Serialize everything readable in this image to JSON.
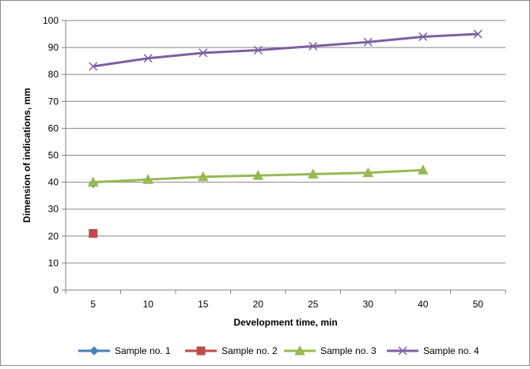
{
  "chart_data": {
    "type": "line",
    "categories": [
      "5",
      "10",
      "15",
      "20",
      "25",
      "30",
      "40",
      "50"
    ],
    "xlabel": "Development time, min",
    "ylabel": "Dimension of indications, mm",
    "ylim": [
      0,
      100
    ],
    "ytick_step": 10,
    "grid": true,
    "legend_position": "bottom",
    "series": [
      {
        "name": "Sample no. 1",
        "color": "#4a7ebb",
        "marker": "diamond",
        "values": [
          39.5,
          null,
          null,
          null,
          null,
          null,
          null,
          null
        ]
      },
      {
        "name": "Sample no. 2",
        "color": "#be4b48",
        "marker": "square",
        "values": [
          21,
          null,
          null,
          null,
          null,
          null,
          null,
          null
        ]
      },
      {
        "name": "Sample no. 3",
        "color": "#98b954",
        "marker": "triangle",
        "values": [
          40,
          41,
          42,
          42.5,
          43,
          43.5,
          44.5,
          null
        ]
      },
      {
        "name": "Sample no. 4",
        "color": "#7d60a0",
        "marker": "x",
        "values": [
          83,
          86,
          88,
          89,
          90.5,
          92,
          94,
          95
        ]
      }
    ]
  }
}
